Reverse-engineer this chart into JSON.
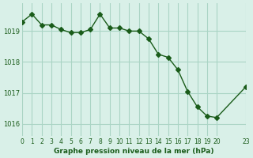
{
  "x": [
    0,
    1,
    2,
    3,
    4,
    5,
    6,
    7,
    8,
    9,
    10,
    11,
    12,
    13,
    14,
    15,
    16,
    17,
    18,
    19,
    20,
    23
  ],
  "y": [
    1019.3,
    1019.55,
    1019.2,
    1019.2,
    1019.05,
    1018.95,
    1018.95,
    1019.05,
    1019.55,
    1019.1,
    1019.1,
    1019.0,
    1019.0,
    1018.75,
    1018.25,
    1018.15,
    1017.75,
    1017.05,
    1016.55,
    1016.25,
    1016.2,
    1017.2
  ],
  "line_color": "#1a5c1a",
  "marker": "D",
  "marker_size": 3,
  "bg_color": "#d9f0e8",
  "grid_color": "#aad4c4",
  "xlabel": "Graphe pression niveau de la mer (hPa)",
  "xlabel_color": "#1a5c1a",
  "tick_color": "#1a5c1a",
  "ylim": [
    1015.6,
    1019.9
  ],
  "xlim": [
    0,
    23
  ],
  "yticks": [
    1016,
    1017,
    1018,
    1019
  ],
  "xticks": [
    0,
    1,
    2,
    3,
    4,
    5,
    6,
    7,
    8,
    9,
    10,
    11,
    12,
    13,
    14,
    15,
    16,
    17,
    18,
    19,
    20,
    23
  ],
  "xtick_labels": [
    "0",
    "1",
    "2",
    "3",
    "4",
    "5",
    "6",
    "7",
    "8",
    "9",
    "10",
    "11",
    "12",
    "13",
    "14",
    "15",
    "16",
    "17",
    "18",
    "19",
    "20",
    "23"
  ]
}
